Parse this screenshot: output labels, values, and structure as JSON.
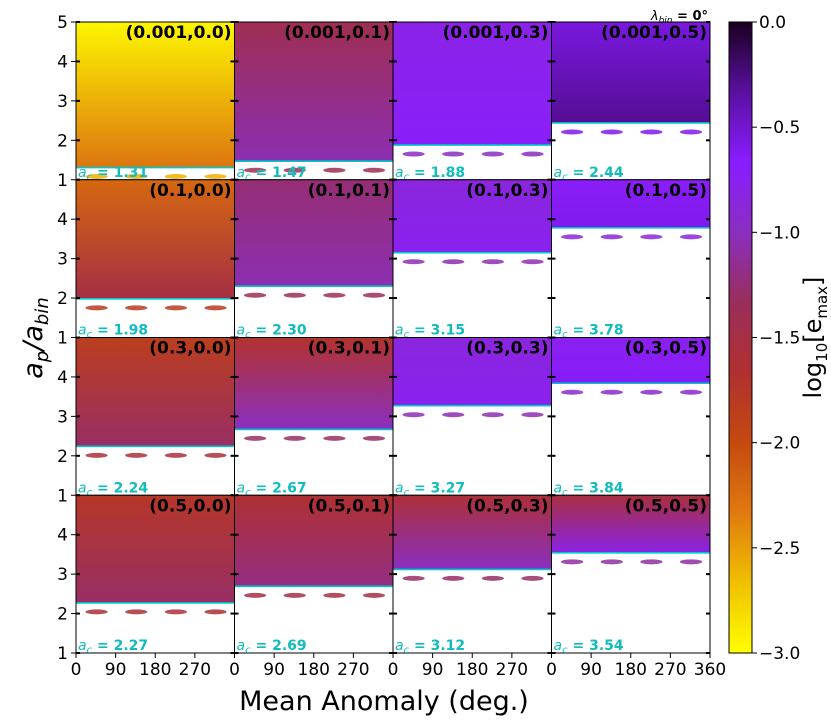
{
  "chart_data": {
    "type": "heatmap",
    "suptitle": {
      "prefix": "λ",
      "sub": "bin",
      "value": " = 0°"
    },
    "xlabel": "Mean Anomaly (deg.)",
    "ylabel": "a_p/a_bin",
    "ylabel_parts": {
      "a": "a",
      "p": "p",
      "slash": "/a",
      "bin": "bin"
    },
    "xlim": [
      0,
      360
    ],
    "ylim": [
      1,
      5
    ],
    "xticks": [
      0,
      90,
      180,
      270
    ],
    "xticks_last": [
      0,
      90,
      180,
      270,
      360
    ],
    "yticks": [
      1,
      2,
      3,
      4,
      5
    ],
    "colorbar": {
      "label_prefix": "log",
      "label_sub": "10",
      "label_inner": "e",
      "label_inner_sub": "max",
      "range": [
        -3.0,
        0.0
      ],
      "ticks": [
        "0.0",
        "−0.5",
        "−1.0",
        "−1.5",
        "−2.0",
        "−2.5",
        "−3.0"
      ],
      "colormap": [
        "#ffff00",
        "#f0c000",
        "#e07a10",
        "#c44a10",
        "#b03030",
        "#9a2e5a",
        "#8a2ec0",
        "#8a1cff",
        "#5a10a0",
        "#1a0020"
      ]
    },
    "stability_line_color": "#00c8c8",
    "rows_mu": [
      "0.001",
      "0.1",
      "0.3",
      "0.5"
    ],
    "cols_e": [
      "0.0",
      "0.1",
      "0.3",
      "0.5"
    ],
    "panels": [
      {
        "label": "(0.001,0.0)",
        "ac": 1.31,
        "log_emax_top": -2.95,
        "log_emax_near_ac": -2.3
      },
      {
        "label": "(0.001,0.1)",
        "ac": 1.47,
        "log_emax_top": -1.4,
        "log_emax_near_ac": -1.05
      },
      {
        "label": "(0.001,0.3)",
        "ac": 1.88,
        "log_emax_top": -0.8,
        "log_emax_near_ac": -0.7
      },
      {
        "label": "(0.001,0.5)",
        "ac": 2.44,
        "log_emax_top": -0.55,
        "log_emax_near_ac": -0.3
      },
      {
        "label": "(0.1,0.0)",
        "ac": 1.98,
        "log_emax_top": -2.2,
        "log_emax_near_ac": -1.5
      },
      {
        "label": "(0.1,0.1)",
        "ac": 2.3,
        "log_emax_top": -1.25,
        "log_emax_near_ac": -1.05
      },
      {
        "label": "(0.1,0.3)",
        "ac": 3.15,
        "log_emax_top": -0.85,
        "log_emax_near_ac": -0.75
      },
      {
        "label": "(0.1,0.5)",
        "ac": 3.78,
        "log_emax_top": -0.7,
        "log_emax_near_ac": -0.6
      },
      {
        "label": "(0.3,0.0)",
        "ac": 2.24,
        "log_emax_top": -1.85,
        "log_emax_near_ac": -1.3
      },
      {
        "label": "(0.3,0.1)",
        "ac": 2.67,
        "log_emax_top": -1.7,
        "log_emax_near_ac": -1.0
      },
      {
        "label": "(0.3,0.3)",
        "ac": 3.27,
        "log_emax_top": -0.85,
        "log_emax_near_ac": -0.75
      },
      {
        "label": "(0.3,0.5)",
        "ac": 3.84,
        "log_emax_top": -0.75,
        "log_emax_near_ac": -0.65
      },
      {
        "label": "(0.5,0.0)",
        "ac": 2.27,
        "log_emax_top": -1.75,
        "log_emax_near_ac": -1.3
      },
      {
        "label": "(0.5,0.1)",
        "ac": 2.69,
        "log_emax_top": -1.65,
        "log_emax_near_ac": -1.2
      },
      {
        "label": "(0.5,0.3)",
        "ac": 3.12,
        "log_emax_top": -1.6,
        "log_emax_near_ac": -1.0
      },
      {
        "label": "(0.5,0.5)",
        "ac": 3.54,
        "log_emax_top": -1.55,
        "log_emax_near_ac": -0.8
      }
    ],
    "ac_label_prefix": "a",
    "ac_label_sub": "c",
    "ac_label_eq": " = "
  }
}
